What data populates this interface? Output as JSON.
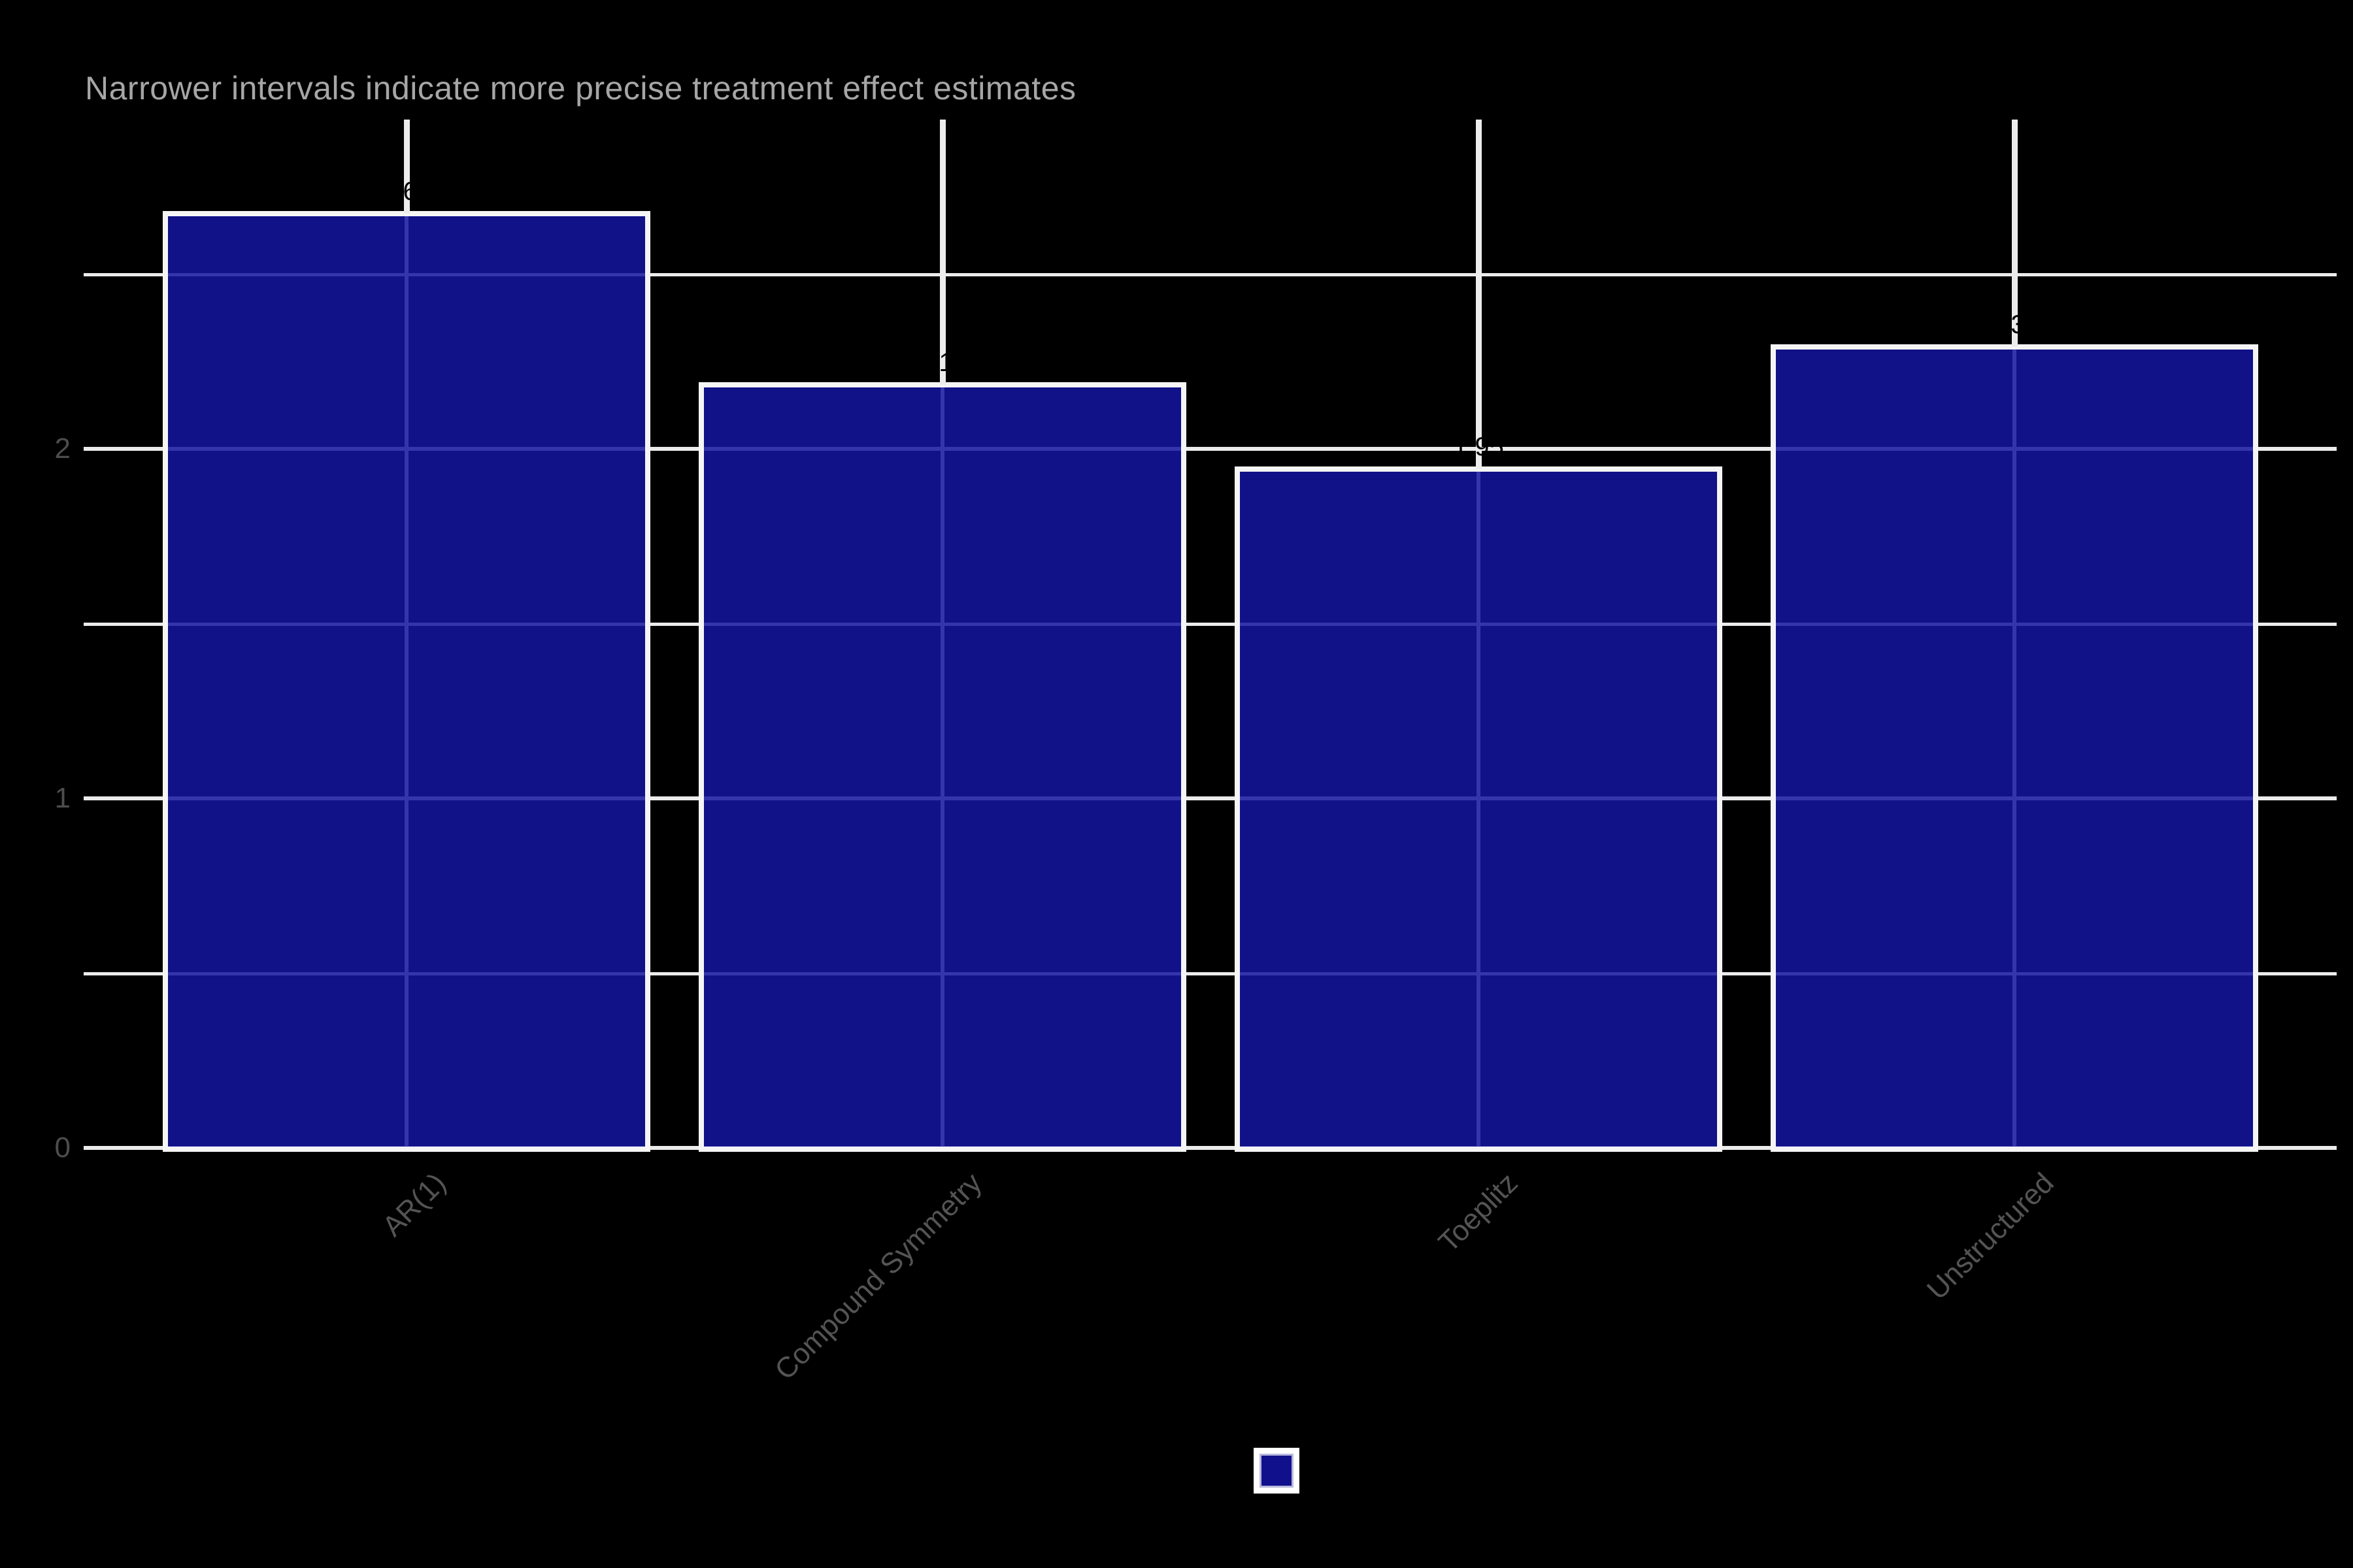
{
  "chart_data": {
    "type": "bar",
    "title": "",
    "subtitle": "Narrower intervals indicate more precise treatment effect estimates",
    "xlabel": "",
    "ylabel": "",
    "categories": [
      "AR(1)",
      "Compound Symmetry",
      "Toeplitz",
      "Unstructured"
    ],
    "values": [
      2.68,
      2.19,
      1.95,
      2.3
    ],
    "value_labels": [
      "2.68",
      "2.19",
      "1.95",
      "2.30"
    ],
    "errorbar_upper": [
      2.94,
      2.94,
      2.94,
      2.94
    ],
    "errorbar_note": "upper whiskers are clipped at the panel top (~2.94); lower whiskers hidden behind the opaque bars",
    "y_ticks_major": [
      0,
      1,
      2
    ],
    "y_tick_labels": [
      "0",
      "1",
      "2"
    ],
    "y_ticks_minor": [
      0.5,
      1.5,
      2.5
    ],
    "ylim": [
      0,
      2.94
    ],
    "grid": true,
    "legend_position": "bottom",
    "legend": {
      "label": "",
      "title": ""
    }
  },
  "colors": {
    "background": "#000000",
    "bar_fill": "#10108C",
    "bar_border": "#F5F5F5",
    "gridline": "#EBEBEB",
    "errorbar": "#EDEDED",
    "subtitle_text": "#A6A6A6",
    "axis_text": "#4D4D4D",
    "value_label_text": "#000000",
    "legend_key_background": "#FFFFFF"
  }
}
